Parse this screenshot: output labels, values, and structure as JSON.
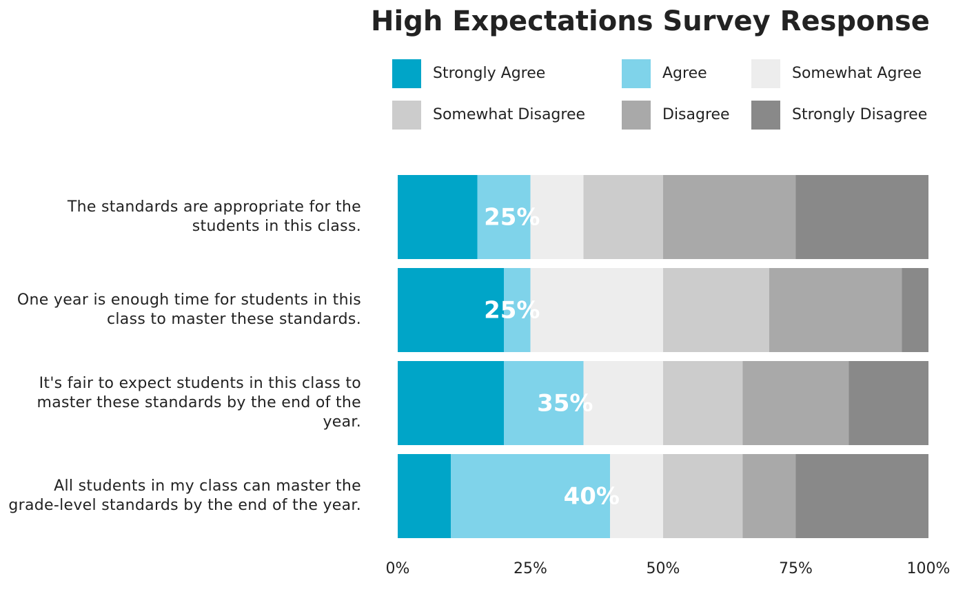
{
  "chart_data": {
    "type": "stacked_barh",
    "title": "High Expectations Survey Response",
    "categories": [
      "The standards are appropriate for the students in this class.",
      "One year is enough time for students in this class to master these standards.",
      "It's fair to expect students in this class to master these standards by the end of the year.",
      "All students in my class can master the grade-level standards by the end of the year."
    ],
    "series": [
      {
        "name": "Strongly Agree",
        "color": "#00a5c8",
        "values": [
          15,
          20,
          20,
          10
        ]
      },
      {
        "name": "Agree",
        "color": "#7fd3ea",
        "values": [
          10,
          5,
          15,
          30
        ]
      },
      {
        "name": "Somewhat Agree",
        "color": "#ededed",
        "values": [
          10,
          25,
          15,
          10
        ]
      },
      {
        "name": "Somewhat Disagree",
        "color": "#cccccc",
        "values": [
          15,
          20,
          15,
          15
        ]
      },
      {
        "name": "Disagree",
        "color": "#a9a9a9",
        "values": [
          25,
          25,
          20,
          10
        ]
      },
      {
        "name": "Strongly Disagree",
        "color": "#898989",
        "values": [
          25,
          5,
          15,
          25
        ]
      }
    ],
    "agree_totals": {
      "values": [
        25,
        25,
        35,
        40
      ],
      "value_labels": [
        "25%",
        "25%",
        "35%",
        "40%"
      ]
    },
    "xlim": [
      0,
      100
    ],
    "xticks": [
      {
        "value": 0,
        "label": "0%"
      },
      {
        "value": 25,
        "label": "25%"
      },
      {
        "value": 50,
        "label": "50%"
      },
      {
        "value": 75,
        "label": "75%"
      },
      {
        "value": 100,
        "label": "100%"
      }
    ]
  }
}
